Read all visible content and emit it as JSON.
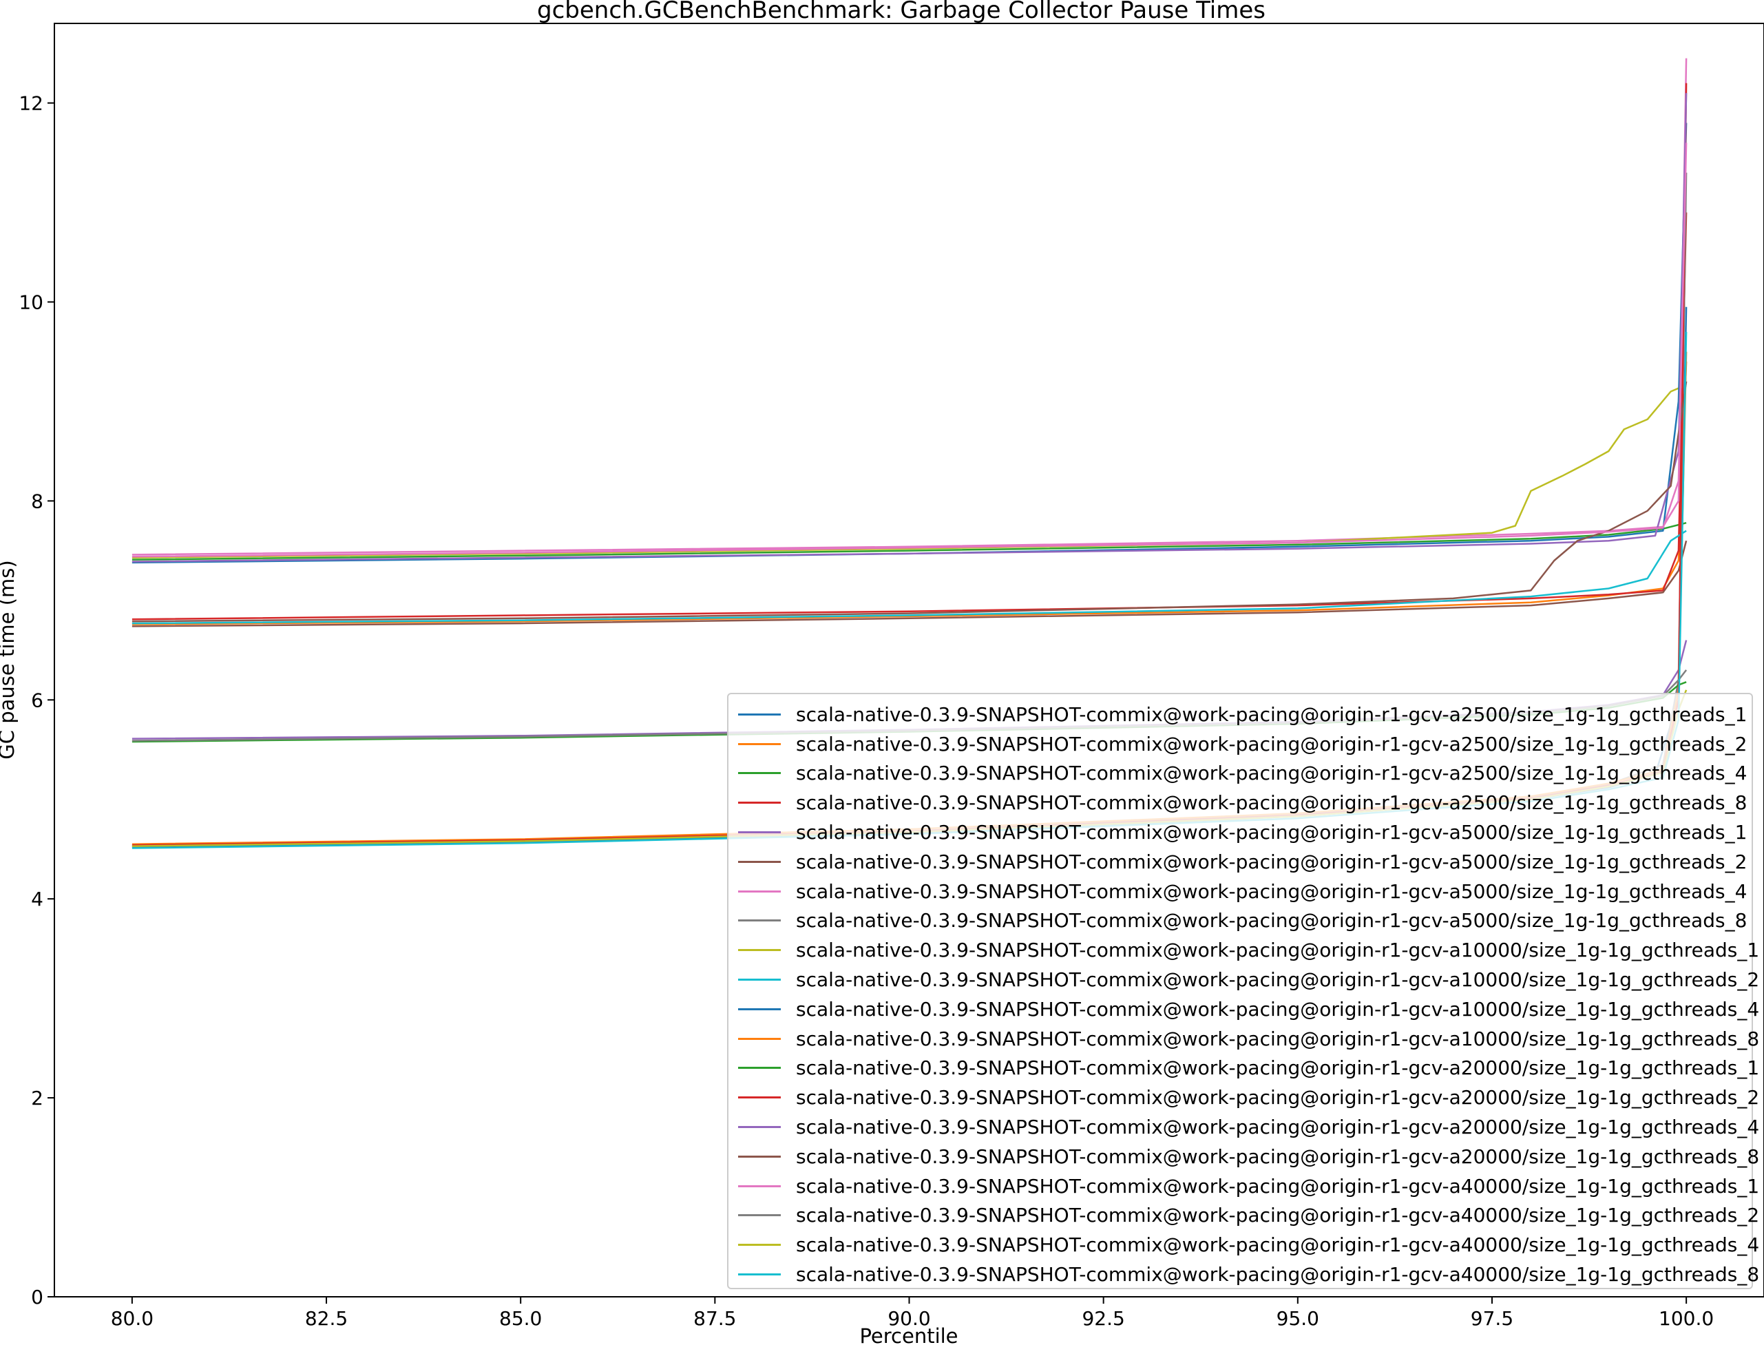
{
  "chart_data": {
    "type": "line",
    "title": "gcbench.GCBenchBenchmark: Garbage Collector Pause Times",
    "xlabel": "Percentile",
    "ylabel": "GC pause time (ms)",
    "xlim": [
      79.0,
      101.0
    ],
    "ylim": [
      0,
      12.8
    ],
    "x_ticks": [
      80.0,
      82.5,
      85.0,
      87.5,
      90.0,
      92.5,
      95.0,
      97.5,
      100.0
    ],
    "x_tick_labels": [
      "80.0",
      "82.5",
      "85.0",
      "87.5",
      "90.0",
      "92.5",
      "95.0",
      "97.5",
      "100.0"
    ],
    "y_ticks": [
      0,
      2,
      4,
      6,
      8,
      10,
      12
    ],
    "y_tick_labels": [
      "0",
      "2",
      "4",
      "6",
      "8",
      "10",
      "12"
    ],
    "grid": false,
    "legend_position": "lower-right",
    "series": [
      {
        "name": "scala-native-0.3.9-SNAPSHOT-commix@work-pacing@origin-r1-gcv-a2500/size_1g-1g_gcthreads_1",
        "color": "#1f77b4",
        "points": [
          [
            80,
            4.52
          ],
          [
            85,
            4.57
          ],
          [
            90,
            4.66
          ],
          [
            95,
            4.83
          ],
          [
            98,
            5.0
          ],
          [
            99,
            5.12
          ],
          [
            99.6,
            5.25
          ],
          [
            99.9,
            6.0
          ],
          [
            100,
            9.95
          ]
        ]
      },
      {
        "name": "scala-native-0.3.9-SNAPSHOT-commix@work-pacing@origin-r1-gcv-a2500/size_1g-1g_gcthreads_2",
        "color": "#ff7f0e",
        "points": [
          [
            80,
            6.76
          ],
          [
            85,
            6.79
          ],
          [
            90,
            6.84
          ],
          [
            95,
            6.9
          ],
          [
            98,
            6.98
          ],
          [
            99,
            7.05
          ],
          [
            99.7,
            7.12
          ],
          [
            99.9,
            7.4
          ],
          [
            100,
            9.4
          ]
        ]
      },
      {
        "name": "scala-native-0.3.9-SNAPSHOT-commix@work-pacing@origin-r1-gcv-a2500/size_1g-1g_gcthreads_4",
        "color": "#2ca02c",
        "points": [
          [
            80,
            7.41
          ],
          [
            85,
            7.45
          ],
          [
            90,
            7.5
          ],
          [
            95,
            7.56
          ],
          [
            98,
            7.62
          ],
          [
            99,
            7.66
          ],
          [
            99.7,
            7.72
          ],
          [
            100,
            7.78
          ]
        ]
      },
      {
        "name": "scala-native-0.3.9-SNAPSHOT-commix@work-pacing@origin-r1-gcv-a2500/size_1g-1g_gcthreads_8",
        "color": "#d62728",
        "points": [
          [
            80,
            6.81
          ],
          [
            85,
            6.85
          ],
          [
            90,
            6.89
          ],
          [
            95,
            6.95
          ],
          [
            98,
            7.02
          ],
          [
            99,
            7.06
          ],
          [
            99.7,
            7.1
          ],
          [
            99.9,
            7.5
          ],
          [
            100,
            10.9
          ]
        ]
      },
      {
        "name": "scala-native-0.3.9-SNAPSHOT-commix@work-pacing@origin-r1-gcv-a5000/size_1g-1g_gcthreads_1",
        "color": "#9467bd",
        "points": [
          [
            80,
            5.61
          ],
          [
            85,
            5.64
          ],
          [
            90,
            5.7
          ],
          [
            95,
            5.78
          ],
          [
            98,
            5.88
          ],
          [
            99,
            5.95
          ],
          [
            99.7,
            6.05
          ],
          [
            99.9,
            6.3
          ],
          [
            100,
            6.6
          ]
        ]
      },
      {
        "name": "scala-native-0.3.9-SNAPSHOT-commix@work-pacing@origin-r1-gcv-a5000/size_1g-1g_gcthreads_2",
        "color": "#8c564b",
        "points": [
          [
            80,
            6.74
          ],
          [
            85,
            6.77
          ],
          [
            90,
            6.82
          ],
          [
            95,
            6.88
          ],
          [
            98,
            6.95
          ],
          [
            99,
            7.02
          ],
          [
            99.7,
            7.08
          ],
          [
            99.9,
            7.3
          ],
          [
            100,
            7.6
          ]
        ]
      },
      {
        "name": "scala-native-0.3.9-SNAPSHOT-commix@work-pacing@origin-r1-gcv-a5000/size_1g-1g_gcthreads_4",
        "color": "#e377c2",
        "points": [
          [
            80,
            7.46
          ],
          [
            85,
            7.5
          ],
          [
            90,
            7.54
          ],
          [
            95,
            7.6
          ],
          [
            98,
            7.67
          ],
          [
            99,
            7.7
          ],
          [
            99.7,
            7.74
          ],
          [
            99.9,
            8.0
          ],
          [
            100,
            12.45
          ]
        ]
      },
      {
        "name": "scala-native-0.3.9-SNAPSHOT-commix@work-pacing@origin-r1-gcv-a5000/size_1g-1g_gcthreads_8",
        "color": "#7f7f7f",
        "points": [
          [
            80,
            4.53
          ],
          [
            85,
            4.58
          ],
          [
            90,
            4.68
          ],
          [
            95,
            4.85
          ],
          [
            98,
            5.02
          ],
          [
            99,
            5.15
          ],
          [
            99.7,
            5.35
          ],
          [
            99.9,
            6.2
          ],
          [
            100,
            11.3
          ]
        ]
      },
      {
        "name": "scala-native-0.3.9-SNAPSHOT-commix@work-pacing@origin-r1-gcv-a10000/size_1g-1g_gcthreads_1",
        "color": "#bcbd22",
        "points": [
          [
            80,
            7.43
          ],
          [
            85,
            7.47
          ],
          [
            90,
            7.52
          ],
          [
            95,
            7.58
          ],
          [
            97.5,
            7.68
          ],
          [
            97.8,
            7.75
          ],
          [
            98,
            8.1
          ],
          [
            98.4,
            8.25
          ],
          [
            98.7,
            8.37
          ],
          [
            99,
            8.5
          ],
          [
            99.2,
            8.72
          ],
          [
            99.5,
            8.82
          ],
          [
            99.8,
            9.1
          ],
          [
            99.95,
            9.15
          ]
        ]
      },
      {
        "name": "scala-native-0.3.9-SNAPSHOT-commix@work-pacing@origin-r1-gcv-a10000/size_1g-1g_gcthreads_2",
        "color": "#17becf",
        "points": [
          [
            80,
            6.77
          ],
          [
            85,
            6.8
          ],
          [
            90,
            6.85
          ],
          [
            95,
            6.92
          ],
          [
            98,
            7.04
          ],
          [
            99,
            7.12
          ],
          [
            99.5,
            7.22
          ],
          [
            99.8,
            7.6
          ],
          [
            100,
            7.7
          ]
        ]
      },
      {
        "name": "scala-native-0.3.9-SNAPSHOT-commix@work-pacing@origin-r1-gcv-a10000/size_1g-1g_gcthreads_4",
        "color": "#1f77b4",
        "points": [
          [
            80,
            7.38
          ],
          [
            85,
            7.42
          ],
          [
            90,
            7.47
          ],
          [
            95,
            7.54
          ],
          [
            98,
            7.6
          ],
          [
            99,
            7.64
          ],
          [
            99.7,
            7.7
          ],
          [
            99.9,
            9.0
          ],
          [
            100,
            11.8
          ]
        ]
      },
      {
        "name": "scala-native-0.3.9-SNAPSHOT-commix@work-pacing@origin-r1-gcv-a10000/size_1g-1g_gcthreads_8",
        "color": "#ff7f0e",
        "points": [
          [
            80,
            4.55
          ],
          [
            85,
            4.6
          ],
          [
            90,
            4.7
          ],
          [
            95,
            4.86
          ],
          [
            98,
            5.03
          ],
          [
            99,
            5.16
          ],
          [
            99.7,
            5.3
          ],
          [
            99.9,
            6.1
          ],
          [
            100,
            9.5
          ]
        ]
      },
      {
        "name": "scala-native-0.3.9-SNAPSHOT-commix@work-pacing@origin-r1-gcv-a20000/size_1g-1g_gcthreads_1",
        "color": "#2ca02c",
        "points": [
          [
            80,
            5.58
          ],
          [
            85,
            5.62
          ],
          [
            90,
            5.68
          ],
          [
            95,
            5.76
          ],
          [
            98,
            5.85
          ],
          [
            99,
            5.92
          ],
          [
            99.7,
            6.02
          ],
          [
            99.9,
            6.15
          ],
          [
            100,
            6.18
          ]
        ]
      },
      {
        "name": "scala-native-0.3.9-SNAPSHOT-commix@work-pacing@origin-r1-gcv-a20000/size_1g-1g_gcthreads_2",
        "color": "#d62728",
        "points": [
          [
            80,
            4.54
          ],
          [
            85,
            4.59
          ],
          [
            90,
            4.68
          ],
          [
            95,
            4.84
          ],
          [
            98,
            5.01
          ],
          [
            99,
            5.14
          ],
          [
            99.7,
            5.28
          ],
          [
            99.9,
            6.0
          ],
          [
            100,
            12.2
          ]
        ]
      },
      {
        "name": "scala-native-0.3.9-SNAPSHOT-commix@work-pacing@origin-r1-gcv-a20000/size_1g-1g_gcthreads_4",
        "color": "#9467bd",
        "points": [
          [
            80,
            7.39
          ],
          [
            85,
            7.43
          ],
          [
            90,
            7.47
          ],
          [
            95,
            7.52
          ],
          [
            98,
            7.57
          ],
          [
            99,
            7.6
          ],
          [
            99.6,
            7.65
          ],
          [
            99.9,
            8.5
          ],
          [
            100,
            12.1
          ]
        ]
      },
      {
        "name": "scala-native-0.3.9-SNAPSHOT-commix@work-pacing@origin-r1-gcv-a20000/size_1g-1g_gcthreads_8",
        "color": "#8c564b",
        "points": [
          [
            80,
            6.79
          ],
          [
            85,
            6.82
          ],
          [
            90,
            6.87
          ],
          [
            95,
            6.96
          ],
          [
            97,
            7.02
          ],
          [
            98,
            7.1
          ],
          [
            98.3,
            7.4
          ],
          [
            98.6,
            7.6
          ],
          [
            99,
            7.7
          ],
          [
            99.5,
            7.9
          ],
          [
            99.8,
            8.15
          ],
          [
            100,
            9.2
          ]
        ]
      },
      {
        "name": "scala-native-0.3.9-SNAPSHOT-commix@work-pacing@origin-r1-gcv-a40000/size_1g-1g_gcthreads_1",
        "color": "#e377c2",
        "points": [
          [
            80,
            7.44
          ],
          [
            85,
            7.48
          ],
          [
            90,
            7.53
          ],
          [
            95,
            7.58
          ],
          [
            98,
            7.65
          ],
          [
            99,
            7.69
          ],
          [
            99.7,
            7.73
          ],
          [
            99.9,
            8.2
          ],
          [
            100,
            11.6
          ]
        ]
      },
      {
        "name": "scala-native-0.3.9-SNAPSHOT-commix@work-pacing@origin-r1-gcv-a40000/size_1g-1g_gcthreads_2",
        "color": "#7f7f7f",
        "points": [
          [
            80,
            5.59
          ],
          [
            85,
            5.63
          ],
          [
            90,
            5.69
          ],
          [
            95,
            5.77
          ],
          [
            98,
            5.87
          ],
          [
            99,
            5.94
          ],
          [
            99.7,
            6.04
          ],
          [
            99.9,
            6.2
          ],
          [
            100,
            6.3
          ]
        ]
      },
      {
        "name": "scala-native-0.3.9-SNAPSHOT-commix@work-pacing@origin-r1-gcv-a40000/size_1g-1g_gcthreads_4",
        "color": "#bcbd22",
        "points": [
          [
            80,
            4.53
          ],
          [
            85,
            4.58
          ],
          [
            90,
            4.67
          ],
          [
            95,
            4.83
          ],
          [
            98,
            5.0
          ],
          [
            99,
            5.13
          ],
          [
            99.7,
            5.27
          ],
          [
            99.9,
            5.9
          ],
          [
            100,
            6.1
          ]
        ]
      },
      {
        "name": "scala-native-0.3.9-SNAPSHOT-commix@work-pacing@origin-r1-gcv-a40000/size_1g-1g_gcthreads_8",
        "color": "#17becf",
        "points": [
          [
            80,
            4.51
          ],
          [
            85,
            4.56
          ],
          [
            90,
            4.65
          ],
          [
            95,
            4.81
          ],
          [
            98,
            4.98
          ],
          [
            99,
            5.1
          ],
          [
            99.7,
            5.22
          ],
          [
            99.9,
            5.8
          ],
          [
            100,
            9.7
          ]
        ]
      }
    ]
  }
}
